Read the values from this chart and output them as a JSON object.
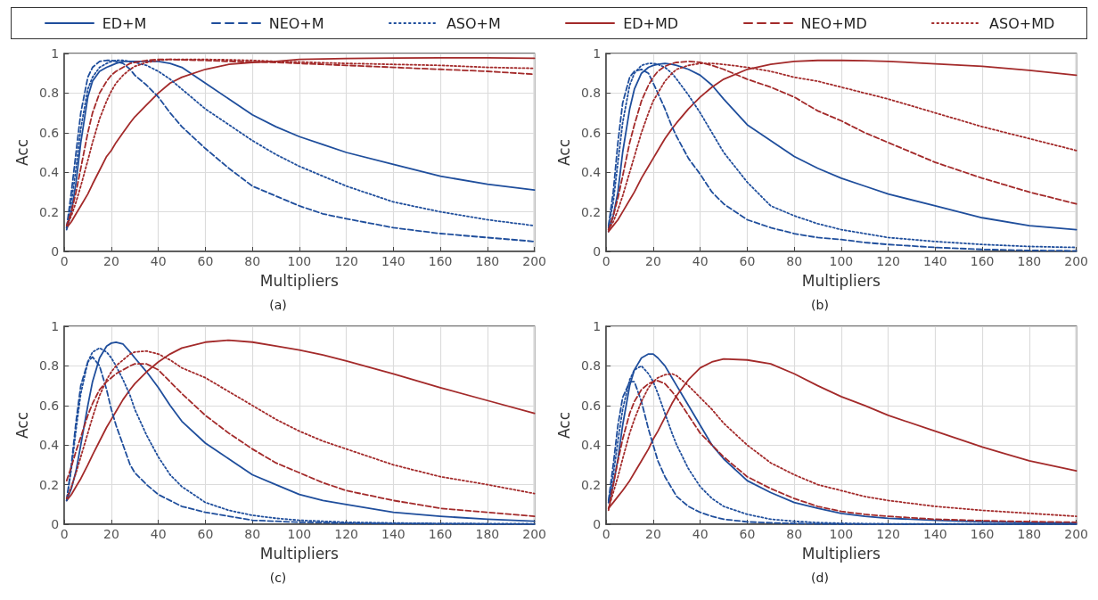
{
  "chart_data": [
    {
      "type": "line",
      "title": "(a)",
      "xlabel": "Multipliers",
      "ylabel": "Acc",
      "legend": "top",
      "grid": true,
      "marker": "none",
      "xlim": [
        0,
        200
      ],
      "xticks": [
        0,
        20,
        40,
        60,
        80,
        100,
        120,
        140,
        160,
        180,
        200
      ],
      "ylim": [
        0,
        1
      ],
      "yticks": [
        0,
        0.2,
        0.4,
        0.6,
        0.8,
        1
      ],
      "x": [
        1,
        3,
        5,
        7,
        10,
        12,
        15,
        18,
        20,
        22,
        25,
        28,
        30,
        35,
        40,
        45,
        50,
        60,
        70,
        80,
        90,
        100,
        110,
        120,
        140,
        160,
        180,
        200
      ],
      "series": [
        {
          "name": "ED+M",
          "color": "#1f4e9c",
          "line_style": "solid",
          "values": [
            0.11,
            0.2,
            0.35,
            0.55,
            0.78,
            0.86,
            0.91,
            0.93,
            0.94,
            0.95,
            0.96,
            0.96,
            0.96,
            0.96,
            0.96,
            0.95,
            0.93,
            0.85,
            0.77,
            0.69,
            0.63,
            0.58,
            0.54,
            0.5,
            0.44,
            0.38,
            0.34,
            0.31
          ]
        },
        {
          "name": "NEO+M",
          "color": "#1f4e9c",
          "line_style": "dashed",
          "values": [
            0.12,
            0.3,
            0.5,
            0.7,
            0.88,
            0.93,
            0.96,
            0.965,
            0.965,
            0.96,
            0.95,
            0.92,
            0.89,
            0.84,
            0.78,
            0.7,
            0.63,
            0.52,
            0.42,
            0.33,
            0.28,
            0.23,
            0.19,
            0.165,
            0.12,
            0.09,
            0.07,
            0.05
          ]
        },
        {
          "name": "ASO+M",
          "color": "#1f4e9c",
          "line_style": "dotted",
          "values": [
            0.12,
            0.25,
            0.42,
            0.62,
            0.82,
            0.88,
            0.93,
            0.95,
            0.96,
            0.965,
            0.965,
            0.96,
            0.955,
            0.94,
            0.91,
            0.87,
            0.82,
            0.72,
            0.64,
            0.56,
            0.49,
            0.43,
            0.38,
            0.33,
            0.25,
            0.2,
            0.16,
            0.13
          ]
        },
        {
          "name": "ED+MD",
          "color": "#a32a2a",
          "line_style": "solid",
          "values": [
            0.12,
            0.15,
            0.19,
            0.23,
            0.29,
            0.34,
            0.41,
            0.48,
            0.51,
            0.55,
            0.6,
            0.65,
            0.68,
            0.74,
            0.8,
            0.85,
            0.88,
            0.92,
            0.945,
            0.955,
            0.96,
            0.97,
            0.972,
            0.975,
            0.977,
            0.978,
            0.978,
            0.976
          ]
        },
        {
          "name": "NEO+MD",
          "color": "#a32a2a",
          "line_style": "dashed",
          "values": [
            0.13,
            0.2,
            0.3,
            0.42,
            0.6,
            0.7,
            0.8,
            0.86,
            0.89,
            0.91,
            0.93,
            0.95,
            0.955,
            0.965,
            0.97,
            0.97,
            0.968,
            0.965,
            0.96,
            0.958,
            0.955,
            0.95,
            0.945,
            0.94,
            0.93,
            0.92,
            0.91,
            0.895
          ]
        },
        {
          "name": "ASO+MD",
          "color": "#a32a2a",
          "line_style": "dotted",
          "values": [
            0.13,
            0.18,
            0.25,
            0.33,
            0.46,
            0.55,
            0.67,
            0.76,
            0.81,
            0.85,
            0.89,
            0.92,
            0.935,
            0.955,
            0.965,
            0.97,
            0.97,
            0.97,
            0.968,
            0.965,
            0.96,
            0.957,
            0.953,
            0.95,
            0.945,
            0.94,
            0.93,
            0.925
          ]
        }
      ]
    },
    {
      "type": "line",
      "title": "(b)",
      "xlabel": "Multipliers",
      "ylabel": "Acc",
      "grid": true,
      "marker": "none",
      "xlim": [
        0,
        200
      ],
      "xticks": [
        0,
        20,
        40,
        60,
        80,
        100,
        120,
        140,
        160,
        180,
        200
      ],
      "ylim": [
        0,
        1
      ],
      "yticks": [
        0,
        0.2,
        0.4,
        0.6,
        0.8,
        1
      ],
      "x": [
        1,
        3,
        5,
        7,
        10,
        12,
        15,
        18,
        20,
        22,
        25,
        28,
        30,
        35,
        40,
        45,
        50,
        60,
        70,
        80,
        90,
        100,
        110,
        120,
        140,
        160,
        180,
        200
      ],
      "series": [
        {
          "color": "#1f4e9c",
          "line_style": "solid",
          "values": [
            0.1,
            0.18,
            0.3,
            0.5,
            0.72,
            0.82,
            0.9,
            0.93,
            0.94,
            0.945,
            0.95,
            0.945,
            0.94,
            0.92,
            0.89,
            0.84,
            0.77,
            0.64,
            0.56,
            0.48,
            0.42,
            0.37,
            0.33,
            0.29,
            0.23,
            0.17,
            0.13,
            0.11
          ]
        },
        {
          "color": "#1f4e9c",
          "line_style": "dashed",
          "values": [
            0.13,
            0.3,
            0.55,
            0.75,
            0.88,
            0.91,
            0.92,
            0.9,
            0.85,
            0.8,
            0.72,
            0.63,
            0.58,
            0.47,
            0.39,
            0.3,
            0.24,
            0.16,
            0.12,
            0.09,
            0.07,
            0.06,
            0.045,
            0.035,
            0.02,
            0.01,
            0.005,
            0.003
          ]
        },
        {
          "color": "#1f4e9c",
          "line_style": "dotted",
          "values": [
            0.12,
            0.25,
            0.45,
            0.65,
            0.84,
            0.9,
            0.94,
            0.95,
            0.95,
            0.945,
            0.93,
            0.9,
            0.87,
            0.79,
            0.7,
            0.6,
            0.5,
            0.35,
            0.23,
            0.18,
            0.14,
            0.11,
            0.09,
            0.07,
            0.05,
            0.035,
            0.025,
            0.02
          ]
        },
        {
          "color": "#a32a2a",
          "line_style": "solid",
          "values": [
            0.1,
            0.13,
            0.16,
            0.2,
            0.26,
            0.3,
            0.37,
            0.43,
            0.47,
            0.51,
            0.57,
            0.62,
            0.65,
            0.72,
            0.78,
            0.83,
            0.87,
            0.92,
            0.945,
            0.96,
            0.965,
            0.965,
            0.963,
            0.96,
            0.948,
            0.935,
            0.915,
            0.89
          ]
        },
        {
          "color": "#a32a2a",
          "line_style": "dashed",
          "values": [
            0.11,
            0.18,
            0.27,
            0.38,
            0.55,
            0.64,
            0.76,
            0.84,
            0.88,
            0.91,
            0.935,
            0.95,
            0.955,
            0.96,
            0.955,
            0.94,
            0.92,
            0.87,
            0.83,
            0.78,
            0.71,
            0.66,
            0.6,
            0.55,
            0.45,
            0.37,
            0.3,
            0.24
          ]
        },
        {
          "color": "#a32a2a",
          "line_style": "dotted",
          "values": [
            0.11,
            0.15,
            0.21,
            0.28,
            0.4,
            0.48,
            0.6,
            0.7,
            0.76,
            0.8,
            0.86,
            0.9,
            0.92,
            0.94,
            0.95,
            0.95,
            0.945,
            0.93,
            0.91,
            0.88,
            0.86,
            0.83,
            0.8,
            0.77,
            0.7,
            0.63,
            0.57,
            0.51
          ]
        }
      ]
    },
    {
      "type": "line",
      "title": "(c)",
      "xlabel": "Multipliers",
      "ylabel": "Acc",
      "grid": true,
      "marker": "none",
      "xlim": [
        0,
        200
      ],
      "xticks": [
        0,
        20,
        40,
        60,
        80,
        100,
        120,
        140,
        160,
        180,
        200
      ],
      "ylim": [
        0,
        1
      ],
      "yticks": [
        0,
        0.2,
        0.4,
        0.6,
        0.8,
        1
      ],
      "x": [
        1,
        3,
        5,
        7,
        10,
        12,
        15,
        18,
        20,
        22,
        25,
        28,
        30,
        35,
        40,
        45,
        50,
        60,
        70,
        80,
        90,
        100,
        110,
        120,
        140,
        160,
        180,
        200
      ],
      "series": [
        {
          "color": "#1f4e9c",
          "line_style": "solid",
          "values": [
            0.12,
            0.18,
            0.27,
            0.4,
            0.6,
            0.72,
            0.84,
            0.9,
            0.915,
            0.92,
            0.91,
            0.87,
            0.84,
            0.77,
            0.69,
            0.6,
            0.52,
            0.41,
            0.33,
            0.25,
            0.2,
            0.15,
            0.12,
            0.1,
            0.06,
            0.04,
            0.025,
            0.015
          ]
        },
        {
          "color": "#1f4e9c",
          "line_style": "dashed",
          "values": [
            0.12,
            0.3,
            0.52,
            0.7,
            0.82,
            0.845,
            0.8,
            0.68,
            0.58,
            0.5,
            0.4,
            0.3,
            0.26,
            0.2,
            0.15,
            0.12,
            0.09,
            0.06,
            0.04,
            0.02,
            0.015,
            0.01,
            0.008,
            0.005,
            0.003,
            0.002,
            0.001,
            0.001
          ]
        },
        {
          "color": "#1f4e9c",
          "line_style": "dotted",
          "values": [
            0.12,
            0.28,
            0.48,
            0.66,
            0.82,
            0.87,
            0.89,
            0.87,
            0.84,
            0.8,
            0.73,
            0.65,
            0.58,
            0.45,
            0.34,
            0.25,
            0.19,
            0.11,
            0.07,
            0.045,
            0.03,
            0.02,
            0.015,
            0.01,
            0.006,
            0.004,
            0.003,
            0.002
          ]
        },
        {
          "color": "#a32a2a",
          "line_style": "solid",
          "values": [
            0.12,
            0.15,
            0.19,
            0.23,
            0.3,
            0.35,
            0.42,
            0.49,
            0.53,
            0.57,
            0.63,
            0.68,
            0.71,
            0.77,
            0.82,
            0.86,
            0.89,
            0.92,
            0.93,
            0.92,
            0.9,
            0.88,
            0.855,
            0.825,
            0.76,
            0.69,
            0.625,
            0.56
          ]
        },
        {
          "color": "#a32a2a",
          "line_style": "dashed",
          "values": [
            0.22,
            0.29,
            0.37,
            0.44,
            0.55,
            0.61,
            0.68,
            0.72,
            0.74,
            0.76,
            0.78,
            0.8,
            0.81,
            0.81,
            0.78,
            0.72,
            0.66,
            0.55,
            0.46,
            0.38,
            0.31,
            0.26,
            0.21,
            0.17,
            0.12,
            0.08,
            0.06,
            0.04
          ]
        },
        {
          "color": "#a32a2a",
          "line_style": "dotted",
          "values": [
            0.13,
            0.19,
            0.26,
            0.34,
            0.46,
            0.54,
            0.65,
            0.73,
            0.77,
            0.8,
            0.83,
            0.86,
            0.87,
            0.875,
            0.86,
            0.83,
            0.79,
            0.74,
            0.67,
            0.6,
            0.53,
            0.47,
            0.42,
            0.38,
            0.3,
            0.24,
            0.2,
            0.155
          ]
        }
      ]
    },
    {
      "type": "line",
      "title": "(d)",
      "xlabel": "Multipliers",
      "ylabel": "Acc",
      "grid": true,
      "marker": "none",
      "xlim": [
        0,
        200
      ],
      "xticks": [
        0,
        20,
        40,
        60,
        80,
        100,
        120,
        140,
        160,
        180,
        200
      ],
      "ylim": [
        0,
        1
      ],
      "yticks": [
        0,
        0.2,
        0.4,
        0.6,
        0.8,
        1
      ],
      "x": [
        1,
        3,
        5,
        7,
        10,
        12,
        15,
        18,
        20,
        22,
        25,
        28,
        30,
        35,
        40,
        45,
        50,
        60,
        70,
        80,
        90,
        100,
        110,
        120,
        140,
        160,
        180,
        200
      ],
      "series": [
        {
          "color": "#1f4e9c",
          "line_style": "solid",
          "values": [
            0.11,
            0.2,
            0.33,
            0.5,
            0.7,
            0.78,
            0.84,
            0.86,
            0.86,
            0.84,
            0.8,
            0.74,
            0.7,
            0.6,
            0.5,
            0.4,
            0.33,
            0.22,
            0.16,
            0.11,
            0.08,
            0.055,
            0.04,
            0.03,
            0.02,
            0.012,
            0.008,
            0.005
          ]
        },
        {
          "color": "#1f4e9c",
          "line_style": "dashed",
          "values": [
            0.12,
            0.3,
            0.5,
            0.64,
            0.72,
            0.72,
            0.62,
            0.48,
            0.4,
            0.32,
            0.24,
            0.18,
            0.14,
            0.09,
            0.06,
            0.04,
            0.025,
            0.012,
            0.007,
            0.004,
            0.002,
            0.001,
            0.001,
            0.001,
            0.001,
            0.001,
            0.001,
            0.001
          ]
        },
        {
          "color": "#1f4e9c",
          "line_style": "dotted",
          "values": [
            0.11,
            0.25,
            0.42,
            0.58,
            0.73,
            0.78,
            0.8,
            0.76,
            0.72,
            0.66,
            0.56,
            0.46,
            0.4,
            0.28,
            0.19,
            0.13,
            0.09,
            0.05,
            0.025,
            0.015,
            0.008,
            0.005,
            0.003,
            0.002,
            0.002,
            0.002,
            0.002,
            0.002
          ]
        },
        {
          "color": "#a32a2a",
          "line_style": "solid",
          "values": [
            0.08,
            0.11,
            0.14,
            0.17,
            0.22,
            0.26,
            0.32,
            0.38,
            0.43,
            0.47,
            0.54,
            0.61,
            0.65,
            0.73,
            0.79,
            0.82,
            0.835,
            0.83,
            0.81,
            0.76,
            0.7,
            0.645,
            0.6,
            0.55,
            0.47,
            0.39,
            0.32,
            0.27
          ]
        },
        {
          "color": "#a32a2a",
          "line_style": "dashed",
          "values": [
            0.07,
            0.2,
            0.32,
            0.43,
            0.56,
            0.62,
            0.68,
            0.71,
            0.72,
            0.725,
            0.71,
            0.67,
            0.64,
            0.55,
            0.46,
            0.4,
            0.34,
            0.24,
            0.18,
            0.13,
            0.09,
            0.065,
            0.05,
            0.04,
            0.025,
            0.018,
            0.013,
            0.01
          ]
        },
        {
          "color": "#a32a2a",
          "line_style": "dotted",
          "values": [
            0.08,
            0.16,
            0.24,
            0.33,
            0.46,
            0.53,
            0.62,
            0.69,
            0.72,
            0.74,
            0.755,
            0.76,
            0.75,
            0.7,
            0.64,
            0.58,
            0.51,
            0.4,
            0.31,
            0.25,
            0.2,
            0.17,
            0.14,
            0.12,
            0.09,
            0.07,
            0.055,
            0.04
          ]
        }
      ]
    }
  ]
}
